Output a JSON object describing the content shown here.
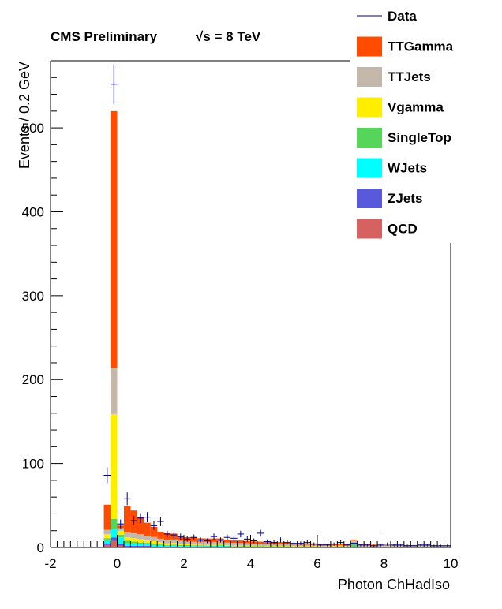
{
  "chart_data": {
    "type": "bar",
    "title": "CMS Preliminary",
    "energy_label": "√s = 8 TeV",
    "xlabel": "Photon ChHadIso",
    "ylabel": "Events / 0.2 GeV",
    "xlim": [
      -2,
      10
    ],
    "ylim": [
      0,
      580
    ],
    "bin_width": 0.2,
    "xticks": [
      -2,
      0,
      2,
      4,
      6,
      8,
      10
    ],
    "yticks": [
      0,
      100,
      200,
      300,
      400,
      500
    ],
    "stack_order": [
      "QCD",
      "ZJets",
      "WJets",
      "SingleTop",
      "Vgamma",
      "TTJets",
      "TTGamma"
    ],
    "bin_edges_start": [
      -0.4,
      -0.2,
      0.0,
      0.2,
      0.4,
      0.6,
      0.8,
      1.0,
      1.2,
      1.4,
      1.6,
      1.8,
      2.0,
      2.2,
      2.4,
      2.6,
      2.8,
      3.0,
      3.2,
      3.4,
      3.6,
      3.8,
      4.0,
      4.2,
      4.4,
      4.6,
      4.8,
      5.0,
      5.2,
      5.4,
      5.6,
      5.8,
      6.0,
      6.2,
      6.4,
      6.6,
      6.8,
      7.0,
      7.2,
      7.4,
      7.6,
      7.8,
      8.0,
      8.2,
      8.4,
      8.6,
      8.8,
      9.0,
      9.2,
      9.4,
      9.6,
      9.8
    ],
    "series": [
      {
        "name": "QCD",
        "color": "#d56161",
        "values": [
          3,
          8,
          2,
          1,
          1,
          1,
          1,
          0.5,
          0.5,
          0.5,
          0.5,
          0.5,
          0.5,
          0.3,
          0.3,
          0.3,
          0.3,
          0.3,
          0.3,
          0.3,
          0.2,
          0.2,
          0.2,
          0.2,
          0.2,
          0.2,
          0.2,
          0.2,
          0.1,
          0.1,
          0.1,
          0.1,
          0.1,
          0.1,
          0.1,
          0.1,
          0.1,
          0.1,
          0.1,
          0.1,
          0.1,
          0.1,
          0.1,
          0.1,
          0.1,
          0.1,
          0.1,
          0.1,
          0.1,
          0.1,
          0.1,
          0.1
        ]
      },
      {
        "name": "ZJets",
        "color": "#5959dc",
        "values": [
          2,
          4,
          2,
          1,
          1,
          1,
          1,
          0.5,
          0.5,
          0.5,
          0.5,
          0.5,
          0.3,
          0.3,
          0.3,
          0.3,
          0.3,
          0.3,
          0.3,
          0.2,
          0.2,
          0.2,
          0.2,
          0.2,
          0.2,
          0.2,
          0.2,
          0.2,
          0.1,
          0.1,
          0.1,
          0.1,
          0.1,
          0.1,
          0.1,
          0.1,
          0.1,
          0.1,
          0.1,
          0.1,
          0.1,
          0.1,
          0.1,
          0.1,
          0.1,
          0.1,
          0.1,
          0.1,
          0.1,
          0.1,
          0.1,
          0.1
        ]
      },
      {
        "name": "WJets",
        "color": "#00ffff",
        "values": [
          3,
          10,
          8,
          3,
          3,
          2,
          2,
          2,
          2,
          1,
          1.5,
          1,
          1,
          1,
          1,
          0.8,
          0.8,
          2,
          0.8,
          0.5,
          0.5,
          0.5,
          0.5,
          0.5,
          0.4,
          0.4,
          0.4,
          0.4,
          0.3,
          0.3,
          0.3,
          0.3,
          0.3,
          0.3,
          0.3,
          0.3,
          0.3,
          0.2,
          0.2,
          0.2,
          0.2,
          0.2,
          0.2,
          0.2,
          0.2,
          0.2,
          0.2,
          0.2,
          0.2,
          0.2,
          0.2,
          0.2
        ]
      },
      {
        "name": "SingleTop",
        "color": "#55d65a",
        "values": [
          3,
          12,
          3,
          3,
          2,
          2,
          1.5,
          1.5,
          1.5,
          1,
          1,
          1,
          1,
          0.8,
          0.8,
          0.8,
          0.8,
          0.6,
          0.6,
          0.6,
          0.6,
          0.5,
          0.5,
          0.5,
          0.5,
          0.5,
          0.5,
          0.5,
          0.4,
          0.4,
          0.4,
          0.4,
          0.4,
          0.4,
          0.4,
          0.4,
          0.4,
          6,
          0.3,
          0.3,
          0.3,
          0.3,
          0.3,
          0.3,
          0.3,
          0.3,
          0.3,
          0.3,
          0.3,
          0.3,
          0.3,
          0.3
        ]
      },
      {
        "name": "Vgamma",
        "color": "#ffee00",
        "values": [
          5,
          125,
          5,
          4,
          4,
          4,
          3,
          3,
          2,
          2,
          2,
          1,
          1,
          1,
          1,
          1,
          1,
          1,
          1,
          0.8,
          0.8,
          0.8,
          0.8,
          0.6,
          0.6,
          0.6,
          0.6,
          0.6,
          0.5,
          0.5,
          0.5,
          0.5,
          0.5,
          0.5,
          0.5,
          0.5,
          0.5,
          0.4,
          0.4,
          0.4,
          0.4,
          0.4,
          0.4,
          0.4,
          0.4,
          0.4,
          0.4,
          0.4,
          0.4,
          0.4,
          0.4,
          0.4
        ]
      },
      {
        "name": "TTJets",
        "color": "#c4b8aa",
        "values": [
          5,
          55,
          3,
          6,
          6,
          6,
          5,
          5,
          4,
          4,
          4,
          4,
          3.5,
          3.5,
          3.5,
          3.5,
          3.5,
          3,
          3,
          3,
          3,
          3,
          2.5,
          2.5,
          2.5,
          2.5,
          2.5,
          2,
          2,
          2,
          2,
          2,
          2,
          1.5,
          1.5,
          1.5,
          1.5,
          1.5,
          1.5,
          1.5,
          1.5,
          1.2,
          1.2,
          1.2,
          1.2,
          1.2,
          1.2,
          1.0,
          1.0,
          1.0,
          1.0,
          1.0
        ]
      },
      {
        "name": "TTGamma",
        "color": "#ff4c00",
        "values": [
          30,
          306,
          3,
          31,
          27,
          20,
          16,
          12,
          8,
          8,
          7,
          6,
          5,
          5,
          4,
          4,
          4,
          3.5,
          3.5,
          3,
          3,
          2.5,
          2.5,
          2.5,
          2,
          2,
          2,
          2,
          1.5,
          1.5,
          1.5,
          1.5,
          1.2,
          1.2,
          1.2,
          1.2,
          1.0,
          1.0,
          1.0,
          1.0,
          0.8,
          0.8,
          0.8,
          0.8,
          0.8,
          0.6,
          0.6,
          0.6,
          0.6,
          0.5,
          0.5,
          0.5
        ]
      }
    ],
    "data": {
      "name": "Data",
      "color": "#00007f",
      "x": [
        -1.5,
        -1.3,
        -1.1,
        -0.9,
        -0.7,
        -0.5,
        -0.3,
        -0.1,
        0.1,
        0.3,
        0.5,
        0.7,
        0.9,
        1.1,
        1.3,
        1.5,
        1.7,
        1.9,
        2.1,
        2.3,
        2.5,
        2.7,
        2.9,
        3.1,
        3.3,
        3.5,
        3.7,
        3.9,
        4.1,
        4.3,
        4.5,
        4.7,
        4.9,
        5.1,
        5.3,
        5.5,
        5.7,
        5.9,
        6.1,
        6.3,
        6.5,
        6.7,
        6.9,
        7.1,
        7.3,
        7.5,
        7.7,
        7.9,
        8.1,
        8.3,
        8.5,
        8.7,
        8.9,
        9.1,
        9.3,
        9.5,
        9.7,
        9.9
      ],
      "y": [
        0,
        0,
        0,
        0,
        0,
        0,
        86,
        552,
        28,
        58,
        32,
        35,
        36,
        26,
        31,
        16,
        15,
        13,
        10,
        12,
        9,
        8,
        13,
        9,
        12,
        11,
        16,
        10,
        8,
        17,
        7,
        6,
        9,
        6,
        5,
        5,
        6,
        4,
        3,
        3,
        4,
        6,
        3,
        5,
        3,
        3,
        2,
        3,
        4,
        3,
        3,
        2,
        2,
        3,
        3,
        2,
        2,
        2
      ]
    },
    "legend": {
      "placement": "top-right",
      "entries": [
        {
          "label": "Data",
          "color": "#00007f",
          "kind": "line"
        },
        {
          "label": "TTGamma",
          "color": "#ff4c00",
          "kind": "box"
        },
        {
          "label": "TTJets",
          "color": "#c4b8aa",
          "kind": "box"
        },
        {
          "label": "Vgamma",
          "color": "#ffee00",
          "kind": "box"
        },
        {
          "label": "SingleTop",
          "color": "#55d65a",
          "kind": "box"
        },
        {
          "label": "WJets",
          "color": "#00ffff",
          "kind": "box"
        },
        {
          "label": "ZJets",
          "color": "#5959dc",
          "kind": "box"
        },
        {
          "label": "QCD",
          "color": "#d56161",
          "kind": "box"
        }
      ]
    }
  }
}
